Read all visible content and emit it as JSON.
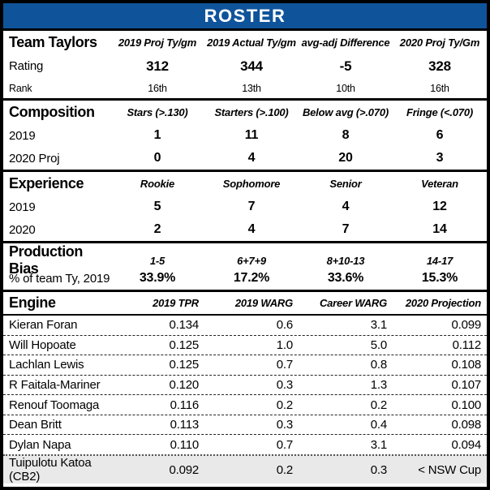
{
  "page": {
    "title": "ROSTER"
  },
  "colors": {
    "banner_blue": "#0F549B",
    "banner_text": "#FFFFFF",
    "border_black": "#000000",
    "highlight_row_bg": "#E9E9E9"
  },
  "chart_data": {
    "type": "table",
    "title": "ROSTER",
    "tables": [
      {
        "corner_label": "Team Taylors",
        "columns": [
          "2019 Proj Ty/gm",
          "2019 Actual Ty/gm",
          "avg-adj Difference",
          "2020 Proj Ty/Gm"
        ],
        "rows": [
          {
            "label": "Rating",
            "values": [
              "312",
              "344",
              "-5",
              "328"
            ]
          },
          {
            "label": "Rank",
            "values": [
              "16th",
              "13th",
              "10th",
              "16th"
            ]
          }
        ]
      },
      {
        "corner_label": "Composition",
        "columns": [
          "Stars (>.130)",
          "Starters (>.100)",
          "Below avg (>.070)",
          "Fringe (<.070)"
        ],
        "rows": [
          {
            "label": "2019",
            "values": [
              "1",
              "11",
              "8",
              "6"
            ]
          },
          {
            "label": "2020 Proj",
            "values": [
              "0",
              "4",
              "20",
              "3"
            ]
          }
        ]
      },
      {
        "corner_label": "Experience",
        "columns": [
          "Rookie",
          "Sophomore",
          "Senior",
          "Veteran"
        ],
        "rows": [
          {
            "label": "2019",
            "values": [
              "5",
              "7",
              "4",
              "12"
            ]
          },
          {
            "label": "2020",
            "values": [
              "2",
              "4",
              "7",
              "14"
            ]
          }
        ]
      },
      {
        "corner_label": "Production Bias",
        "columns": [
          "1-5",
          "6+7+9",
          "8+10-13",
          "14-17"
        ],
        "rows": [
          {
            "label": "% of team Ty, 2019",
            "values": [
              "33.9%",
              "17.2%",
              "33.6%",
              "15.3%"
            ]
          }
        ]
      },
      {
        "corner_label": "Engine",
        "columns": [
          "2019 TPR",
          "2019 WARG",
          "Career WARG",
          "2020 Projection"
        ],
        "rows": [
          {
            "label": "Kieran Foran",
            "values": [
              "0.134",
              "0.6",
              "3.1",
              "0.099"
            ]
          },
          {
            "label": "Will Hopoate",
            "values": [
              "0.125",
              "1.0",
              "5.0",
              "0.112"
            ]
          },
          {
            "label": "Lachlan Lewis",
            "values": [
              "0.125",
              "0.7",
              "0.8",
              "0.108"
            ]
          },
          {
            "label": "R Faitala-Mariner",
            "values": [
              "0.120",
              "0.3",
              "1.3",
              "0.107"
            ]
          },
          {
            "label": "Renouf Toomaga",
            "values": [
              "0.116",
              "0.2",
              "0.2",
              "0.100"
            ]
          },
          {
            "label": "Dean Britt",
            "values": [
              "0.113",
              "0.3",
              "0.4",
              "0.098"
            ]
          },
          {
            "label": "Dylan Napa",
            "values": [
              "0.110",
              "0.7",
              "3.1",
              "0.094"
            ]
          },
          {
            "label": "Tuipulotu Katoa (CB2)",
            "values": [
              "0.092",
              "0.2",
              "0.3",
              "< NSW Cup"
            ],
            "highlight": true
          }
        ]
      }
    ]
  }
}
